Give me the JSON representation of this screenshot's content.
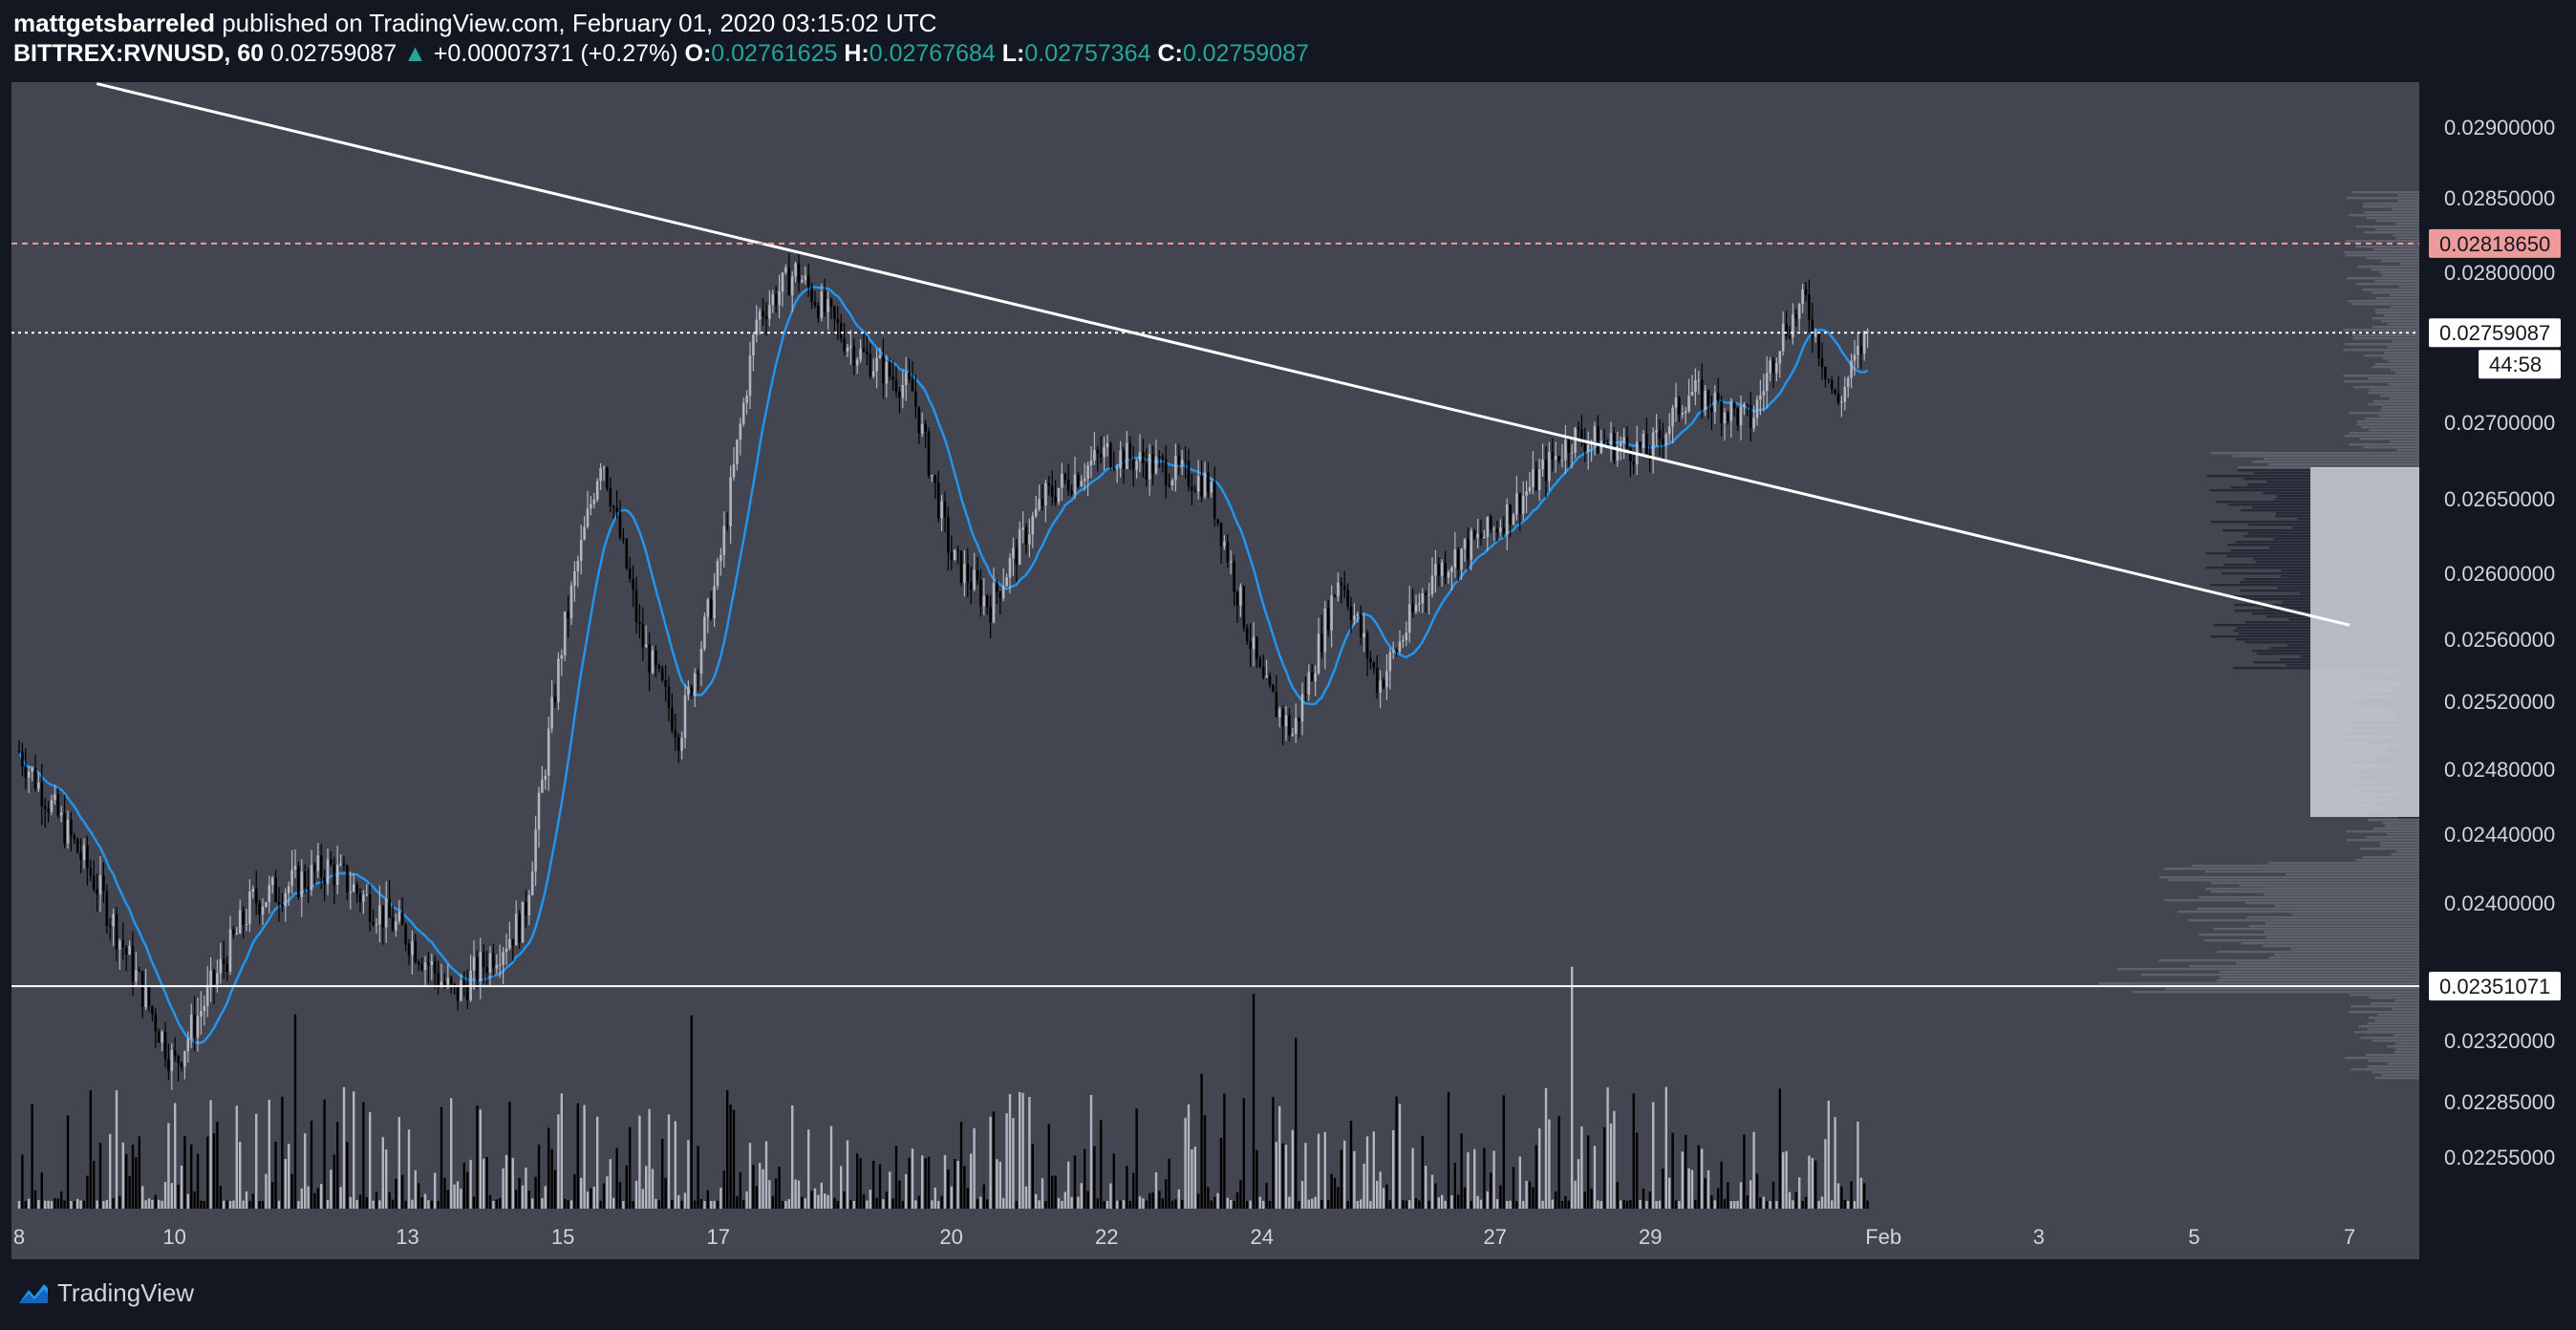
{
  "header": {
    "author": "mattgetsbarreled",
    "published": "published on TradingView.com, February 01, 2020 03:15:02 UTC",
    "symbol": "BITTREX:RVNUSD, 60",
    "last": "0.02759087",
    "change": "+0.00007371 (+0.27%)",
    "o_label": "O:",
    "o": "0.02761625",
    "h_label": "H:",
    "h": "0.02767684",
    "l_label": "L:",
    "l": "0.02757364",
    "c_label": "C:",
    "c": "0.02759087"
  },
  "brand": {
    "name": "TradingView",
    "icon": "tradingview-logo-icon"
  },
  "colors": {
    "background": "#131722",
    "pane": "#434651",
    "up_candle": "#b2b5be",
    "down_candle": "#000000",
    "ma": "#2196f3",
    "resistance_line": "#ef9a9a",
    "trendline": "#ffffff",
    "label_highlight": "#ef9a9a",
    "header_values": "#26a69a"
  },
  "chart_data": {
    "type": "candlestick",
    "interval": "60",
    "symbol": "BITTREX:RVNUSD",
    "x_ticks": [
      "8",
      "10",
      "13",
      "15",
      "17",
      "20",
      "22",
      "24",
      "27",
      "29",
      "Feb",
      "3",
      "5",
      "7"
    ],
    "y_ticks": [
      "0.02900000",
      "0.02850000",
      "0.02800000",
      "0.02700000",
      "0.02650000",
      "0.02600000",
      "0.02560000",
      "0.02520000",
      "0.02480000",
      "0.02440000",
      "0.02400000",
      "0.02320000",
      "0.02285000",
      "0.02255000"
    ],
    "price_labels": [
      {
        "value": 0.0281865,
        "text": "0.02818650",
        "style": "dashed-red"
      },
      {
        "value": 0.02759087,
        "text": "0.02759087",
        "style": "dotted-white",
        "countdown": "44:58"
      },
      {
        "value": 0.02351071,
        "text": "0.02351071",
        "style": "solid-white"
      }
    ],
    "trendline": {
      "start": [
        "Jan 9",
        0.0293
      ],
      "end": [
        "Feb 7",
        0.02568
      ]
    },
    "anchors": [
      [
        "Jan 8",
        0.0249
      ],
      [
        "Jan 9",
        0.0241
      ],
      [
        "Jan 10",
        0.02305
      ],
      [
        "Jan 11",
        0.024
      ],
      [
        "Jan 12",
        0.0242
      ],
      [
        "Jan 13",
        0.0238
      ],
      [
        "Jan 13.6",
        0.02345
      ],
      [
        "Jan 14.5",
        0.0239
      ],
      [
        "Jan 15",
        0.0256
      ],
      [
        "Jan 15.5",
        0.0268
      ],
      [
        "Jan 16",
        0.0256
      ],
      [
        "Jan 16.5",
        0.025
      ],
      [
        "Jan 17",
        0.026
      ],
      [
        "Jan 17.5",
        0.0277
      ],
      [
        "Jan 18",
        0.028
      ],
      [
        "Jan 18.7",
        0.0275
      ],
      [
        "Jan 19.5",
        0.0272
      ],
      [
        "Jan 20",
        0.0261
      ],
      [
        "Jan 20.5",
        0.0258
      ],
      [
        "Jan 21.2",
        0.0265
      ],
      [
        "Jan 22",
        0.0268
      ],
      [
        "Jan 22.7",
        0.0267
      ],
      [
        "Jan 23.3",
        0.0266
      ],
      [
        "Jan 24",
        0.0253
      ],
      [
        "Jan 24.4",
        0.025
      ],
      [
        "Jan 25",
        0.026
      ],
      [
        "Jan 25.5",
        0.0253
      ],
      [
        "Jan 26.2",
        0.026
      ],
      [
        "Jan 27",
        0.0263
      ],
      [
        "Jan 28",
        0.0269
      ],
      [
        "Jan 29",
        0.0268
      ],
      [
        "Jan 29.5",
        0.0272
      ],
      [
        "Jan 30.3",
        0.027
      ],
      [
        "Jan 30.7",
        0.0276
      ],
      [
        "Jan 31",
        0.0278
      ],
      [
        "Jan 31.4",
        0.0271
      ],
      [
        "Jan 31.8",
        0.0276
      ]
    ],
    "volume_profile_value_area": [
      0.0245,
      0.0267
    ],
    "volume_profile_poc": 0.02351071,
    "grid": false,
    "legend": "none"
  }
}
